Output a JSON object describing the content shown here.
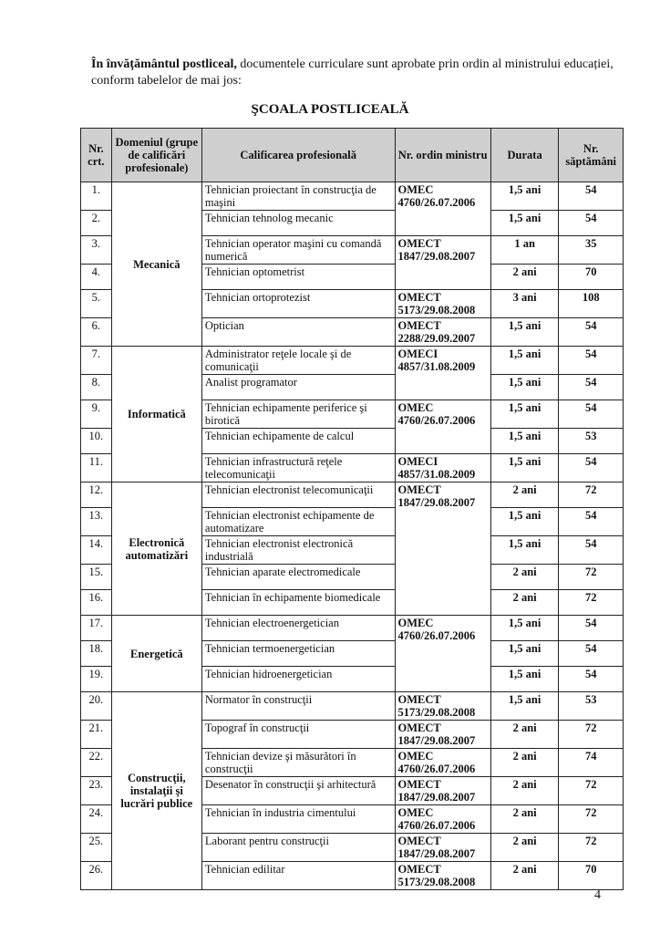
{
  "intro": {
    "lead": "În învățământul postliceal,",
    "text": "documentele curriculare sunt aprobate prin ordin al ministrului educației, conform tabelelor de mai jos:"
  },
  "heading": "ŞCOALA POSTLICEALĂ",
  "table": {
    "headers": [
      "Nr. crt.",
      "Domeniul (grupe de calificări profesionale)",
      "Calificarea profesională",
      "Nr. ordin ministru",
      "Durata",
      "Nr. săptămâni"
    ],
    "groups": [
      {
        "domain": "Mecanică",
        "rows": [
          {
            "nr": "1.",
            "qualification": "Tehnician proiectant în construcţia de maşini",
            "order": "OMEC 4760/26.07.2006",
            "duration": "1,5 ani",
            "weeks": "54"
          },
          {
            "nr": "2.",
            "qualification": "Tehnician tehnolog mecanic",
            "duration": "1,5 ani",
            "weeks": "54"
          },
          {
            "nr": "3.",
            "qualification": "Tehnician operator maşini cu comandă numerică",
            "order": "OMECT 1847/29.08.2007",
            "duration": "1 an",
            "weeks": "35"
          },
          {
            "nr": "4.",
            "qualification": "Tehnician optometrist",
            "duration": "2 ani",
            "weeks": "70"
          },
          {
            "nr": "5.",
            "qualification": "Tehnician ortoprotezist",
            "order": "OMECT 5173/29.08.2008",
            "duration": "3 ani",
            "weeks": "108"
          },
          {
            "nr": "6.",
            "qualification": "Optician",
            "order": "OMECT 2288/29.09.2007",
            "duration": "1,5 ani",
            "weeks": "54"
          }
        ]
      },
      {
        "domain": "Informatică",
        "rows": [
          {
            "nr": "7.",
            "qualification": "Administrator reţele locale şi de comunicaţii",
            "order": "OMECI 4857/31.08.2009",
            "duration": "1,5 ani",
            "weeks": "54"
          },
          {
            "nr": "8.",
            "qualification": "Analist programator",
            "duration": "1,5 ani",
            "weeks": "54"
          },
          {
            "nr": "9.",
            "qualification": "Tehnician echipamente periferice şi birotică",
            "order": "OMEC 4760/26.07.2006",
            "duration": "1,5 ani",
            "weeks": "54"
          },
          {
            "nr": "10.",
            "qualification": "Tehnician echipamente de calcul",
            "duration": "1,5 ani",
            "weeks": "53"
          },
          {
            "nr": "11.",
            "qualification": "Tehnician infrastructură reţele telecomunicaţii",
            "order": "OMECI 4857/31.08.2009",
            "duration": "1,5 ani",
            "weeks": "54"
          }
        ]
      },
      {
        "domain": "Electronică automatizări",
        "rows": [
          {
            "nr": "12.",
            "qualification": "Tehnician electronist telecomunicaţii",
            "order": "OMECT 1847/29.08.2007",
            "duration": "2 ani",
            "weeks": "72"
          },
          {
            "nr": "13.",
            "qualification": "Tehnician electronist echipamente de automatizare",
            "duration": "1,5 ani",
            "weeks": "54"
          },
          {
            "nr": "14.",
            "qualification": "Tehnician electronist electronică industrială",
            "duration": "1,5 ani",
            "weeks": "54"
          },
          {
            "nr": "15.",
            "qualification": "Tehnician aparate electromedicale",
            "duration": "2 ani",
            "weeks": "72"
          },
          {
            "nr": "16.",
            "qualification": "Tehnician în echipamente biomedicale",
            "duration": "2 ani",
            "weeks": "72"
          }
        ]
      },
      {
        "domain": "Energetică",
        "rows": [
          {
            "nr": "17.",
            "qualification": "Tehnician electroenergetician",
            "order": "OMEC 4760/26.07.2006",
            "duration": "1,5 ani",
            "weeks": "54"
          },
          {
            "nr": "18.",
            "qualification": "Tehnician termoenergetician",
            "duration": "1,5 ani",
            "weeks": "54"
          },
          {
            "nr": "19.",
            "qualification": "Tehnician hidroenergetician",
            "duration": "1,5 ani",
            "weeks": "54"
          }
        ]
      },
      {
        "domain": "Construcţii, instalaţii şi lucrări publice",
        "rows": [
          {
            "nr": "20.",
            "qualification": "Normator în construcţii",
            "order": "OMECT 5173/29.08.2008",
            "duration": "1,5 ani",
            "weeks": "53"
          },
          {
            "nr": "21.",
            "qualification": "Topograf în construcţii",
            "order": "OMECT 1847/29.08.2007",
            "duration": "2 ani",
            "weeks": "72"
          },
          {
            "nr": "22.",
            "qualification": "Tehnician devize şi măsurători în construcţii",
            "order": "OMEC 4760/26.07.2006",
            "duration": "2 ani",
            "weeks": "74"
          },
          {
            "nr": "23.",
            "qualification": "Desenator în construcţii şi arhitectură",
            "order": "OMECT 1847/29.08.2007",
            "duration": "2 ani",
            "weeks": "72"
          },
          {
            "nr": "24.",
            "qualification": "Tehnician în industria cimentului",
            "order": "OMEC 4760/26.07.2006",
            "duration": "2 ani",
            "weeks": "72"
          },
          {
            "nr": "25.",
            "qualification": "Laborant pentru construcţii",
            "order": "OMECT 1847/29.08.2007",
            "duration": "2 ani",
            "weeks": "72"
          },
          {
            "nr": "26.",
            "qualification": "Tehnician edilitar",
            "order": "OMECT 5173/29.08.2008",
            "duration": "2 ani",
            "weeks": "70"
          }
        ]
      }
    ]
  },
  "page_number": "4"
}
